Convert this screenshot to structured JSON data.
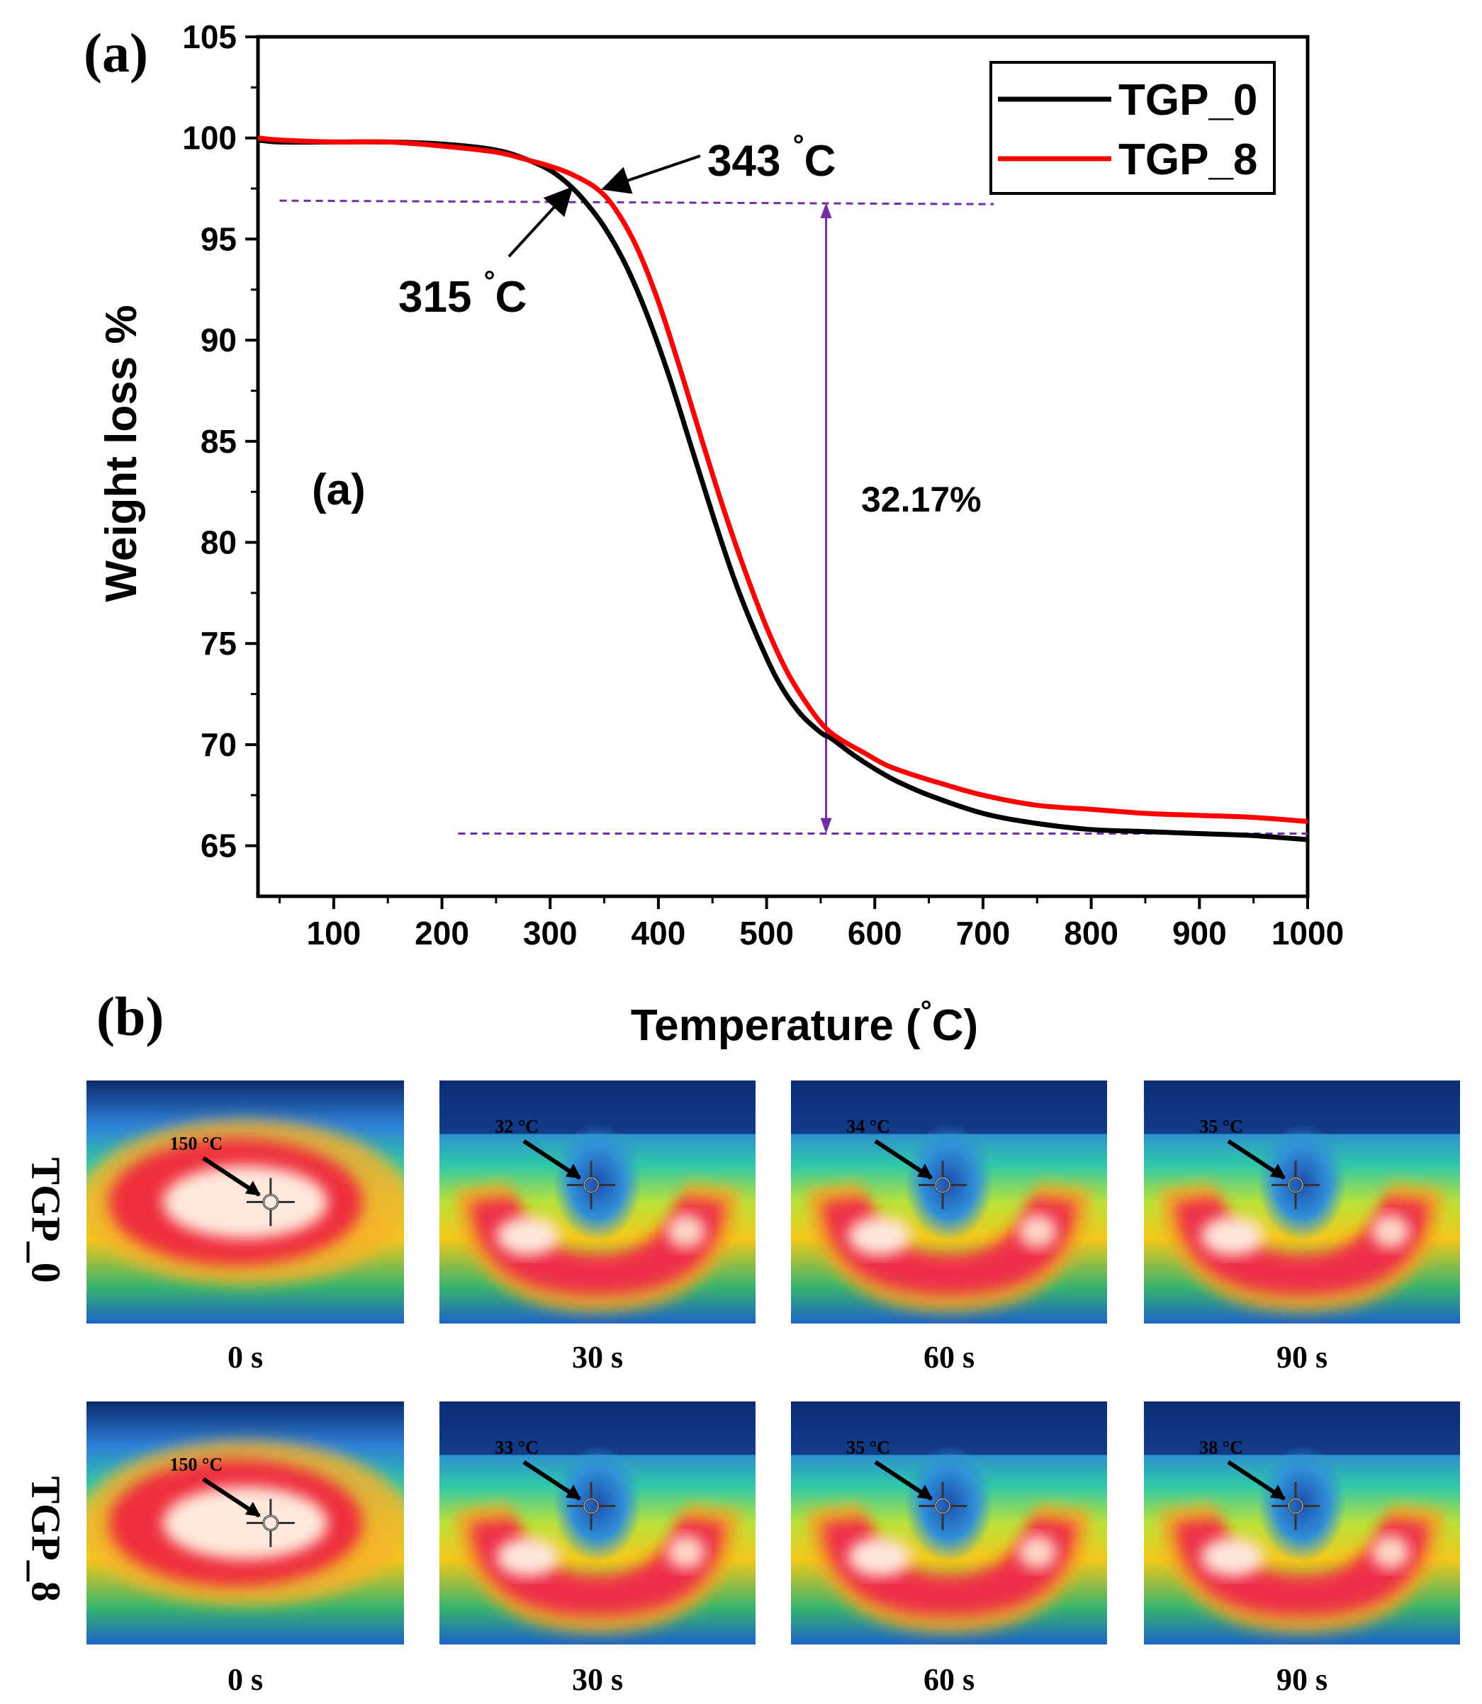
{
  "panel_a_label": "(a)",
  "panel_b_label": "(b)",
  "chart_data": {
    "type": "line",
    "title": "",
    "xlabel": "Temperature (°C)",
    "xlabel_main": "Temperature (",
    "xlabel_unit": "C)",
    "ylabel": "Weight loss %",
    "xlim": [
      30,
      1000
    ],
    "ylim": [
      62.5,
      105
    ],
    "x_ticks": [
      100,
      200,
      300,
      400,
      500,
      600,
      700,
      800,
      900,
      1000
    ],
    "y_ticks": [
      65,
      70,
      75,
      80,
      85,
      90,
      95,
      100,
      105
    ],
    "inner_label": "(a)",
    "series": [
      {
        "name": "TGP_0",
        "color": "#000000",
        "x": [
          30,
          50,
          100,
          150,
          200,
          250,
          280,
          300,
          315,
          330,
          350,
          370,
          390,
          410,
          430,
          450,
          470,
          490,
          510,
          530,
          550,
          560,
          580,
          600,
          620,
          650,
          700,
          750,
          800,
          850,
          900,
          950,
          1000
        ],
        "y": [
          99.9,
          99.8,
          99.8,
          99.8,
          99.7,
          99.4,
          98.9,
          98.4,
          97.8,
          97.0,
          95.6,
          93.7,
          91.2,
          88.2,
          84.8,
          81.4,
          78.2,
          75.5,
          73.2,
          71.6,
          70.6,
          70.3,
          69.5,
          68.8,
          68.2,
          67.5,
          66.6,
          66.1,
          65.8,
          65.7,
          65.6,
          65.5,
          65.3
        ]
      },
      {
        "name": "TGP_8",
        "color": "#ff0000",
        "x": [
          30,
          50,
          100,
          150,
          200,
          250,
          280,
          300,
          320,
          343,
          360,
          380,
          400,
          420,
          440,
          460,
          480,
          500,
          520,
          540,
          555,
          570,
          590,
          610,
          630,
          660,
          700,
          750,
          800,
          850,
          900,
          950,
          1000
        ],
        "y": [
          100.0,
          99.9,
          99.8,
          99.8,
          99.6,
          99.3,
          98.9,
          98.6,
          98.2,
          97.5,
          96.5,
          94.6,
          91.9,
          88.6,
          85.1,
          81.7,
          78.6,
          75.8,
          73.5,
          71.8,
          70.8,
          70.2,
          69.6,
          69.0,
          68.6,
          68.1,
          67.5,
          67.0,
          66.8,
          66.6,
          66.5,
          66.4,
          66.2
        ]
      }
    ],
    "annotations": {
      "onset_0": {
        "label": "315 ",
        "unit": "C",
        "x": 315,
        "y": 97.6
      },
      "onset_8": {
        "label": "343 ",
        "unit": "C",
        "x": 343,
        "y": 97.4
      },
      "mass_loss": {
        "label": "32.17%",
        "x": 555,
        "y_top": 96.8,
        "y_bottom": 65.6
      },
      "upper_dash_level": 96.9,
      "lower_dash_level": 65.6,
      "upper_dash_x": [
        50,
        710
      ],
      "lower_dash_x": [
        215,
        1000
      ]
    },
    "legend": {
      "position": "top-right",
      "entries": [
        "TGP_0",
        "TGP_8"
      ]
    }
  },
  "thermal_images": {
    "rows": [
      {
        "label": "TGP_0",
        "frames": [
          {
            "time": "0 s",
            "temp": "150 °C",
            "pattern": "blob"
          },
          {
            "time": "30 s",
            "temp": "32 °C",
            "pattern": "u"
          },
          {
            "time": "60 s",
            "temp": "34 °C",
            "pattern": "u"
          },
          {
            "time": "90 s",
            "temp": "35 °C",
            "pattern": "u"
          }
        ]
      },
      {
        "label": "TGP_8",
        "frames": [
          {
            "time": "0 s",
            "temp": "150 °C",
            "pattern": "blob"
          },
          {
            "time": "30 s",
            "temp": "33 °C",
            "pattern": "u"
          },
          {
            "time": "60 s",
            "temp": "35 °C",
            "pattern": "u"
          },
          {
            "time": "90 s",
            "temp": "38 °C",
            "pattern": "u"
          }
        ]
      }
    ]
  }
}
